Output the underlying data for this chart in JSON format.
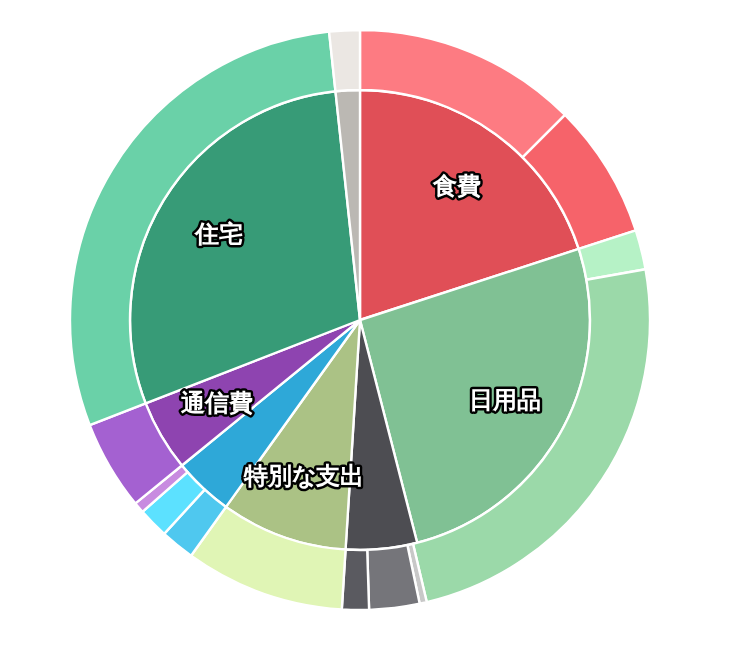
{
  "chart_data": [
    {
      "type": "pie",
      "categories": [
        "食費",
        "日用品",
        null,
        "特別な支出",
        null,
        "通信費",
        "住宅",
        null
      ],
      "values": [
        20,
        26,
        5,
        8.9,
        4.2,
        5,
        29.2,
        1.7
      ],
      "colors": [
        "#e04f57",
        "#80c194",
        "#4d4d52",
        "#abc285",
        "#2ea8d8",
        "#8e44b0",
        "#379b77",
        "#bbb8b3"
      ]
    },
    {
      "type": "donut",
      "categories": [
        null,
        null,
        null,
        null,
        null,
        null,
        null,
        null,
        null,
        null,
        null,
        null,
        null,
        null
      ],
      "values": [
        12.5,
        7.5,
        2.2,
        24.1,
        0.4,
        2.8,
        1.5,
        8.9,
        1.9,
        1.7,
        0.6,
        5,
        29.2,
        1.7
      ],
      "colors": [
        "#fd7b82",
        "#f6636a",
        "#b6f2c6",
        "#9bd9a9",
        "#c8c8c8",
        "#75757a",
        "#5a5a60",
        "#e0f5b5",
        "#4fc8ef",
        "#5ce1ff",
        "#c88be0",
        "#a461d1",
        "#6ad1a8",
        "#ebe7e3"
      ]
    }
  ]
}
